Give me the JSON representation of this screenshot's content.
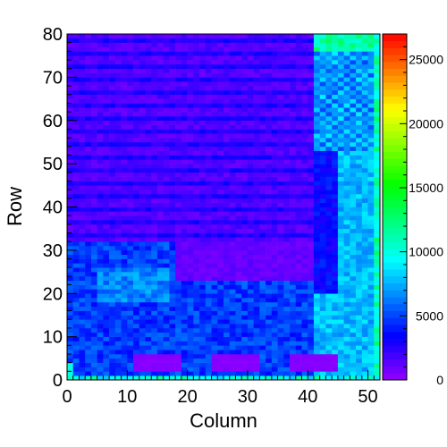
{
  "chart_data": {
    "type": "heatmap",
    "title": "",
    "xlabel": "Column",
    "ylabel": "Row",
    "xlim": [
      0,
      52
    ],
    "ylim": [
      0,
      80
    ],
    "x_ticks": [
      0,
      10,
      20,
      30,
      40,
      50
    ],
    "y_ticks": [
      0,
      10,
      20,
      30,
      40,
      50,
      60,
      70,
      80
    ],
    "colorbar": {
      "range": [
        0,
        27000
      ],
      "ticks": [
        0,
        5000,
        10000,
        15000,
        20000,
        25000
      ],
      "palette": "rainbow (violet to red)"
    },
    "grid": false,
    "regions": [
      {
        "name": "upper-left block",
        "columns": [
          0,
          41
        ],
        "rows": [
          32,
          80
        ],
        "approx_value": 1500
      },
      {
        "name": "central band",
        "columns": [
          18,
          40
        ],
        "rows": [
          23,
          32
        ],
        "approx_value": 1000
      },
      {
        "name": "lower area",
        "columns": [
          0,
          48
        ],
        "rows": [
          2,
          32
        ],
        "approx_value": 4500
      },
      {
        "name": "right side",
        "columns": [
          41,
          51
        ],
        "rows": [
          0,
          80
        ],
        "approx_value": 7000
      },
      {
        "name": "bottom rectangle 1",
        "columns": [
          11,
          19
        ],
        "rows": [
          2,
          6
        ],
        "approx_value": 200
      },
      {
        "name": "bottom rectangle 2",
        "columns": [
          24,
          32
        ],
        "rows": [
          2,
          6
        ],
        "approx_value": 200
      },
      {
        "name": "bottom rectangle 3",
        "columns": [
          37,
          45
        ],
        "rows": [
          2,
          6
        ],
        "approx_value": 200
      },
      {
        "name": "edge column",
        "columns": [
          51,
          52
        ],
        "rows": [
          0,
          80
        ],
        "approx_value": 11000
      }
    ]
  }
}
